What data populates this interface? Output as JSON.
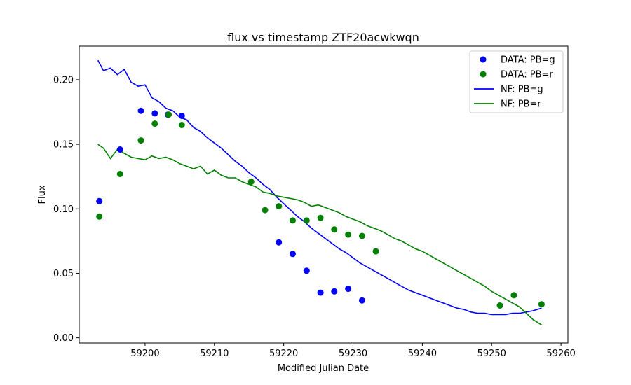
{
  "chart_data": {
    "type": "scatter",
    "title": "flux vs timestamp ZTF20acwkwqn",
    "xlabel": "Modified Julian Date",
    "ylabel": "Flux",
    "xlim": [
      59190.5,
      59261.0
    ],
    "ylim": [
      -0.004,
      0.226
    ],
    "x_ticks": [
      59200,
      59210,
      59220,
      59230,
      59240,
      59250,
      59260
    ],
    "y_ticks": [
      0.0,
      0.05,
      0.1,
      0.15,
      0.2
    ],
    "x_tick_labels": [
      "59200",
      "59210",
      "59220",
      "59230",
      "59240",
      "59250",
      "59260"
    ],
    "y_tick_labels": [
      "0.00",
      "0.05",
      "0.10",
      "0.15",
      "0.20"
    ],
    "grid": false,
    "legend_position": "top-right",
    "colors": {
      "g": "#0000ff",
      "r": "#008000"
    },
    "series": [
      {
        "name": "DATA: PB=g",
        "kind": "scatter",
        "color": "#0000ff",
        "x": [
          59193.4,
          59196.4,
          59199.4,
          59201.4,
          59203.3,
          59205.3,
          59219.3,
          59221.3,
          59223.3,
          59225.3,
          59227.3,
          59229.3,
          59231.3
        ],
        "y": [
          0.106,
          0.146,
          0.176,
          0.174,
          0.173,
          0.172,
          0.074,
          0.065,
          0.052,
          0.035,
          0.036,
          0.038,
          0.029
        ]
      },
      {
        "name": "DATA: PB=r",
        "kind": "scatter",
        "color": "#008000",
        "x": [
          59193.4,
          59196.4,
          59199.4,
          59201.4,
          59203.4,
          59205.3,
          59215.3,
          59217.3,
          59219.3,
          59221.3,
          59223.3,
          59225.3,
          59227.3,
          59229.3,
          59231.3,
          59233.3,
          59251.2,
          59253.2,
          59257.2
        ],
        "y": [
          0.094,
          0.127,
          0.153,
          0.166,
          0.173,
          0.165,
          0.121,
          0.099,
          0.102,
          0.091,
          0.091,
          0.093,
          0.084,
          0.08,
          0.079,
          0.067,
          0.025,
          0.033,
          0.026
        ]
      },
      {
        "name": "NF: PB=g",
        "kind": "line",
        "color": "#0000ff",
        "x": [
          59193.2,
          59194.0,
          59195.0,
          59196.0,
          59197.0,
          59198.0,
          59199.0,
          59200.0,
          59201.0,
          59202.0,
          59203.0,
          59204.0,
          59205.0,
          59206.0,
          59207.0,
          59208.0,
          59209.0,
          59210.0,
          59211.0,
          59212.0,
          59213.0,
          59214.0,
          59215.0,
          59216.0,
          59217.0,
          59218.0,
          59219.0,
          59220.0,
          59221.0,
          59222.0,
          59223.0,
          59224.0,
          59225.0,
          59226.0,
          59227.0,
          59228.0,
          59229.0,
          59230.0,
          59231.0,
          59232.0,
          59233.0,
          59234.0,
          59235.0,
          59236.0,
          59237.0,
          59238.0,
          59239.0,
          59240.0,
          59241.0,
          59242.0,
          59243.0,
          59244.0,
          59245.0,
          59246.0,
          59247.0,
          59248.0,
          59249.0,
          59250.0,
          59251.0,
          59252.0,
          59253.0,
          59254.0,
          59255.0,
          59256.0,
          59257.2
        ],
        "y": [
          0.215,
          0.207,
          0.209,
          0.204,
          0.208,
          0.198,
          0.195,
          0.196,
          0.186,
          0.183,
          0.178,
          0.176,
          0.171,
          0.169,
          0.163,
          0.16,
          0.155,
          0.151,
          0.147,
          0.142,
          0.137,
          0.133,
          0.128,
          0.124,
          0.119,
          0.115,
          0.109,
          0.104,
          0.099,
          0.094,
          0.09,
          0.085,
          0.081,
          0.077,
          0.073,
          0.069,
          0.066,
          0.062,
          0.058,
          0.055,
          0.052,
          0.049,
          0.046,
          0.043,
          0.04,
          0.037,
          0.035,
          0.033,
          0.031,
          0.029,
          0.027,
          0.025,
          0.023,
          0.022,
          0.02,
          0.019,
          0.019,
          0.018,
          0.018,
          0.018,
          0.019,
          0.019,
          0.02,
          0.021,
          0.023
        ]
      },
      {
        "name": "NF: PB=r",
        "kind": "line",
        "color": "#008000",
        "x": [
          59193.2,
          59194.0,
          59195.0,
          59196.0,
          59197.0,
          59198.0,
          59199.0,
          59200.0,
          59201.0,
          59202.0,
          59203.0,
          59204.0,
          59205.0,
          59206.0,
          59207.0,
          59208.0,
          59209.0,
          59210.0,
          59211.0,
          59212.0,
          59213.0,
          59214.0,
          59215.0,
          59216.0,
          59217.0,
          59218.0,
          59219.0,
          59220.0,
          59221.0,
          59222.0,
          59223.0,
          59224.0,
          59225.0,
          59226.0,
          59227.0,
          59228.0,
          59229.0,
          59230.0,
          59231.0,
          59232.0,
          59233.0,
          59234.0,
          59235.0,
          59236.0,
          59237.0,
          59238.0,
          59239.0,
          59240.0,
          59241.0,
          59242.0,
          59243.0,
          59244.0,
          59245.0,
          59246.0,
          59247.0,
          59248.0,
          59249.0,
          59250.0,
          59251.0,
          59252.0,
          59253.0,
          59254.0,
          59255.0,
          59256.0,
          59257.2
        ],
        "y": [
          0.15,
          0.147,
          0.139,
          0.146,
          0.143,
          0.14,
          0.139,
          0.138,
          0.141,
          0.139,
          0.14,
          0.138,
          0.135,
          0.133,
          0.131,
          0.133,
          0.127,
          0.13,
          0.126,
          0.124,
          0.124,
          0.121,
          0.119,
          0.117,
          0.113,
          0.112,
          0.11,
          0.109,
          0.108,
          0.107,
          0.105,
          0.102,
          0.103,
          0.101,
          0.099,
          0.097,
          0.094,
          0.092,
          0.09,
          0.087,
          0.085,
          0.083,
          0.08,
          0.077,
          0.075,
          0.072,
          0.069,
          0.067,
          0.064,
          0.061,
          0.058,
          0.055,
          0.052,
          0.049,
          0.046,
          0.043,
          0.04,
          0.036,
          0.033,
          0.03,
          0.027,
          0.024,
          0.019,
          0.014,
          0.01
        ]
      }
    ]
  }
}
